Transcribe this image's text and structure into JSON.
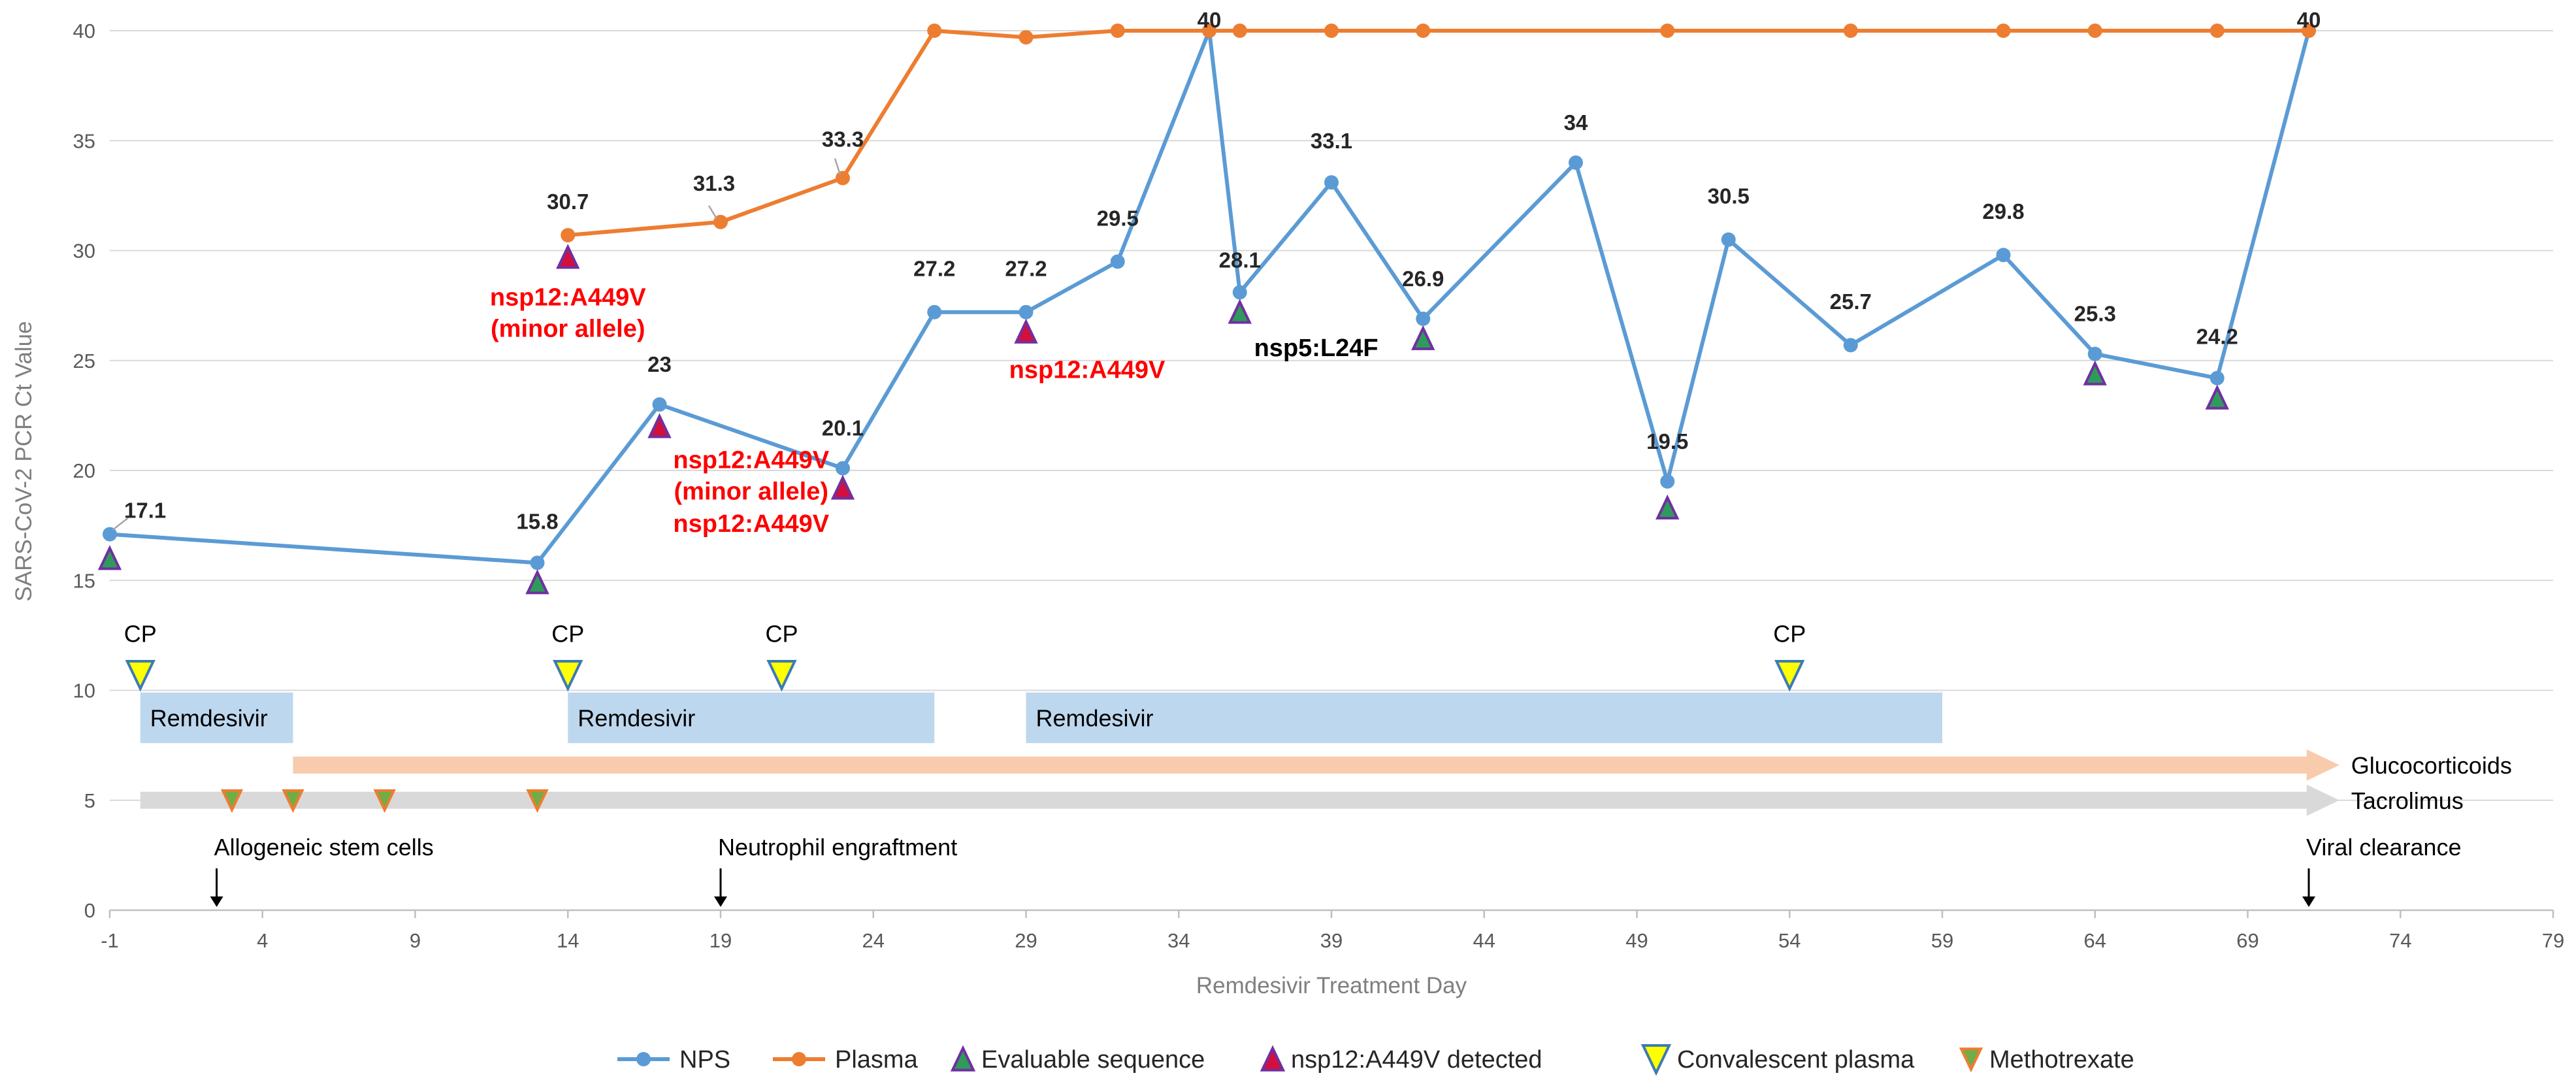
{
  "colors": {
    "nps": "#5b9bd5",
    "plasma": "#ed7d31",
    "mutation_text": "#ff0000",
    "evaluable_fill": "#2e9b5a",
    "evaluable_edge": "#7030a0",
    "nsp12_fill": "#d40f3c",
    "nsp12_edge": "#7030a0",
    "cp_fill": "#ffff00",
    "cp_edge": "#3b7bb5",
    "mtx_fill": "#70ad47",
    "mtx_edge": "#ed7d31",
    "remdesivir": "#bdd7ee",
    "glucocorticoids": "#f8cbad",
    "tacrolimus": "#d9d9d9",
    "grid": "#d9d9d9"
  },
  "chart_data": {
    "type": "line",
    "xlabel": "Remdesivir Treatment Day",
    "ylabel": "SARS-CoV-2 PCR Ct Value",
    "xlim": [
      -1,
      79
    ],
    "ylim": [
      0,
      40
    ],
    "xticks": [
      "-1",
      "4",
      "9",
      "14",
      "19",
      "24",
      "29",
      "34",
      "39",
      "44",
      "49",
      "54",
      "59",
      "64",
      "69",
      "74",
      "79"
    ],
    "yticks": [
      "0",
      "5",
      "10",
      "15",
      "20",
      "25",
      "30",
      "35",
      "40"
    ],
    "grid": "horizontal",
    "legend": {
      "position": "bottom",
      "entries": [
        "NPS",
        "Plasma",
        "Evaluable sequence",
        "nsp12:A449V detected",
        "Convalescent plasma",
        "Methotrexate"
      ]
    },
    "series": [
      {
        "name": "NPS",
        "x": [
          -1,
          13,
          17,
          23,
          26,
          29,
          32,
          35,
          36,
          39,
          42,
          47,
          50,
          52,
          56,
          61,
          64,
          68,
          71
        ],
        "y": [
          17.1,
          15.8,
          23,
          20.1,
          27.2,
          27.2,
          29.5,
          40,
          28.1,
          33.1,
          26.9,
          34,
          19.5,
          30.5,
          25.7,
          29.8,
          25.3,
          24.2,
          40
        ],
        "labels": [
          "17.1",
          "15.8",
          "23",
          "20.1",
          "27.2",
          "27.2",
          "29.5",
          "40",
          "28.1",
          "33.1",
          "26.9",
          "34",
          "19.5",
          "30.5",
          "25.7",
          "29.8",
          "25.3",
          "24.2",
          "40"
        ]
      },
      {
        "name": "Plasma",
        "x": [
          14,
          19,
          23,
          26,
          29,
          32,
          35,
          36,
          39,
          42,
          50,
          56,
          61,
          64,
          68,
          71
        ],
        "y": [
          30.7,
          31.3,
          33.3,
          40,
          39.7,
          40,
          40,
          40,
          40,
          40,
          40,
          40,
          40,
          40,
          40,
          40
        ],
        "labels": [
          "30.7",
          "31.3",
          "33.3"
        ]
      }
    ],
    "evaluable_sequence": [
      {
        "x": -1,
        "y": 16
      },
      {
        "x": 13,
        "y": 14.9
      },
      {
        "x": 36,
        "y": 27.2
      },
      {
        "x": 42,
        "y": 26
      },
      {
        "x": 50,
        "y": 18.3
      },
      {
        "x": 64,
        "y": 24.4
      },
      {
        "x": 68,
        "y": 23.3
      }
    ],
    "nsp12_detected": [
      {
        "x": 14,
        "y": 29.7
      },
      {
        "x": 17,
        "y": 22
      },
      {
        "x": 23,
        "y": 19.2
      },
      {
        "x": 29,
        "y": 26.3
      }
    ],
    "mutation_labels": [
      {
        "lines": [
          "nsp12:A449V",
          "(minor allele)"
        ],
        "x": 14,
        "y": 27.5,
        "color": "red"
      },
      {
        "lines": [
          "nsp12:A449V",
          "(minor allele)"
        ],
        "x": 20,
        "y": 20.1,
        "color": "red"
      },
      {
        "lines": [
          "nsp12:A449V"
        ],
        "x": 20,
        "y": 17.2,
        "color": "red"
      },
      {
        "lines": [
          "nsp12:A449V"
        ],
        "x": 31,
        "y": 24.2,
        "color": "red"
      },
      {
        "lines": [
          "nsp5:L24F"
        ],
        "x": 38.5,
        "y": 25.2,
        "color": "black"
      }
    ],
    "convalescent_plasma": [
      {
        "x": 0,
        "label": "CP"
      },
      {
        "x": 14,
        "label": "CP"
      },
      {
        "x": 21,
        "label": "CP"
      },
      {
        "x": 54,
        "label": "CP"
      }
    ],
    "remdesivir_courses": [
      {
        "start": 0,
        "end": 5,
        "label": "Remdesivir"
      },
      {
        "start": 14,
        "end": 26,
        "label": "Remdesivir"
      },
      {
        "start": 29,
        "end": 59,
        "label": "Remdesivir"
      }
    ],
    "glucocorticoids": {
      "start": 5,
      "end": 72,
      "label": "Glucocorticoids"
    },
    "tacrolimus": {
      "start": 0,
      "end": 72,
      "label": "Tacrolimus"
    },
    "methotrexate": [
      3,
      5,
      8,
      13
    ],
    "events": [
      {
        "x": 2.5,
        "label": "Allogeneic stem cells"
      },
      {
        "x": 19,
        "label": "Neutrophil engraftment"
      },
      {
        "x": 71,
        "label": "Viral clearance"
      }
    ]
  }
}
